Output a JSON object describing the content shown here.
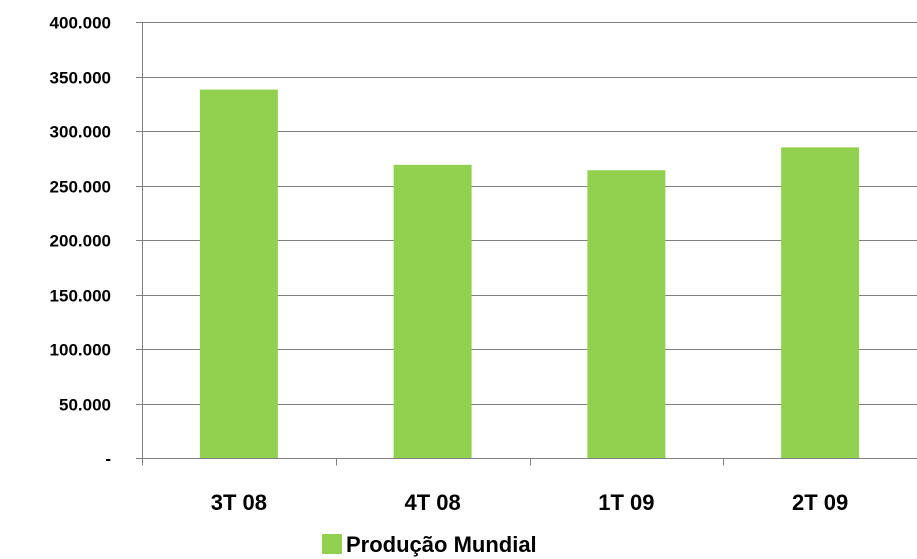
{
  "chart_data": {
    "type": "bar",
    "categories": [
      "3T 08",
      "4T 08",
      "1T 09",
      "2T 09"
    ],
    "series": [
      {
        "name": "Produção Mundial",
        "values": [
          338000,
          269000,
          264000,
          285000
        ]
      }
    ],
    "ylim": [
      0,
      400000
    ],
    "y_ticks": [
      0,
      50000,
      100000,
      150000,
      200000,
      250000,
      300000,
      350000,
      400000
    ],
    "y_tick_labels": [
      "-",
      "50.000",
      "100.000",
      "150.000",
      "200.000",
      "250.000",
      "300.000",
      "350.000",
      "400.000"
    ],
    "grid": true,
    "legend_position": "bottom",
    "colors": {
      "bar": "#92D050",
      "grid": "#808080",
      "axis": "#808080"
    }
  }
}
